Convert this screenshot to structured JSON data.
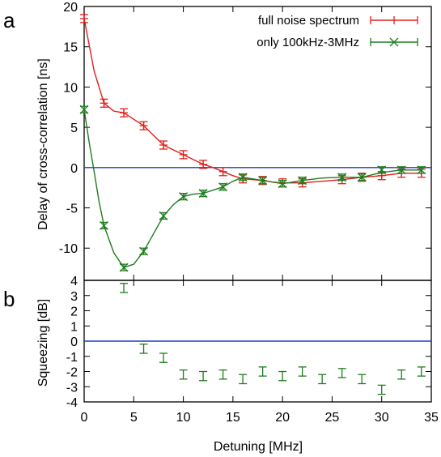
{
  "panels": {
    "top_letter": "a",
    "bottom_letter": "b"
  },
  "chart_data": [
    {
      "type": "line",
      "panel": "a",
      "xlabel": "",
      "ylabel": "Delay of cross-correlation [ns]",
      "xlim": [
        0,
        35
      ],
      "ylim": [
        -14,
        20
      ],
      "yticks": [
        20,
        15,
        10,
        5,
        0,
        -5,
        -10
      ],
      "reference_line": {
        "y": 0,
        "color": "#1f3fbf"
      },
      "legend": {
        "placement": "top-right"
      },
      "series": [
        {
          "name": "full noise spectrum",
          "color": "#e0201b",
          "marker": "plus",
          "x": [
            0,
            2,
            4,
            6,
            8,
            10,
            12,
            14,
            16,
            18,
            20,
            22,
            26,
            28,
            30,
            32,
            34
          ],
          "y": [
            18.5,
            8.0,
            6.8,
            5.2,
            2.8,
            1.6,
            0.4,
            -0.5,
            -1.4,
            -1.6,
            -1.9,
            -1.9,
            -1.5,
            -1.2,
            -1.0,
            -0.7,
            -0.7
          ],
          "err": [
            0.5,
            0.5,
            0.5,
            0.5,
            0.5,
            0.5,
            0.5,
            0.5,
            0.5,
            0.5,
            0.5,
            0.5,
            0.5,
            0.5,
            0.5,
            0.5,
            0.5
          ],
          "fit_x": [
            0,
            1,
            2,
            3,
            4,
            5,
            6,
            7,
            8,
            9,
            10,
            11,
            12,
            13,
            14,
            15,
            16,
            17,
            18,
            19,
            20,
            22,
            24,
            26,
            28,
            30,
            32,
            34
          ],
          "fit_y": [
            18.5,
            12.0,
            8.0,
            7.0,
            6.8,
            6.0,
            5.2,
            4.0,
            2.8,
            2.2,
            1.6,
            1.0,
            0.4,
            0.0,
            -0.5,
            -1.0,
            -1.4,
            -1.5,
            -1.6,
            -1.8,
            -1.9,
            -1.9,
            -1.7,
            -1.5,
            -1.2,
            -1.0,
            -0.7,
            -0.7
          ]
        },
        {
          "name": "only 100kHz-3MHz",
          "color": "#1e7d1e",
          "marker": "x",
          "x": [
            0,
            2,
            4,
            6,
            8,
            10,
            12,
            14,
            16,
            18,
            20,
            22,
            26,
            28,
            30,
            32,
            34
          ],
          "y": [
            7.2,
            -7.2,
            -12.4,
            -10.4,
            -6.0,
            -3.6,
            -3.2,
            -2.4,
            -1.2,
            -1.6,
            -2.0,
            -1.6,
            -1.2,
            -1.2,
            -0.3,
            -0.3,
            -0.3
          ],
          "err": [
            0.4,
            0.4,
            0.4,
            0.4,
            0.4,
            0.4,
            0.4,
            0.4,
            0.4,
            0.4,
            0.4,
            0.4,
            0.4,
            0.4,
            0.4,
            0.4,
            0.4
          ],
          "fit_x": [
            0,
            0.5,
            1,
            1.5,
            2,
            3,
            4,
            5,
            6,
            7,
            8,
            9,
            10,
            11,
            12,
            13,
            14,
            15,
            16,
            18,
            20,
            22,
            24,
            26,
            28,
            30,
            32,
            34
          ],
          "fit_y": [
            7.2,
            3.2,
            -0.5,
            -4.2,
            -7.2,
            -10.6,
            -12.4,
            -12.0,
            -10.4,
            -8.2,
            -6.0,
            -4.6,
            -3.6,
            -3.3,
            -3.2,
            -2.8,
            -2.4,
            -1.7,
            -1.2,
            -1.6,
            -2.0,
            -1.6,
            -1.3,
            -1.2,
            -1.2,
            -0.6,
            -0.3,
            -0.3
          ]
        }
      ]
    },
    {
      "type": "scatter",
      "panel": "b",
      "xlabel": "Detuning [MHz]",
      "ylabel": "Squeezing [dB]",
      "xlim": [
        0,
        35
      ],
      "ylim": [
        -4,
        4
      ],
      "xticks": [
        0,
        5,
        10,
        15,
        20,
        25,
        30,
        35
      ],
      "yticks": [
        4,
        3,
        2,
        1,
        0,
        -1,
        -2,
        -3,
        -4
      ],
      "reference_line": {
        "y": 0,
        "color": "#1f3fbf"
      },
      "series": [
        {
          "color": "#1e7d1e",
          "marker": "errorbar",
          "x": [
            4,
            6,
            8,
            10,
            12,
            14,
            16,
            18,
            20,
            22,
            24,
            26,
            28,
            30,
            32,
            34
          ],
          "y": [
            3.5,
            -0.5,
            -1.1,
            -2.2,
            -2.3,
            -2.2,
            -2.5,
            -2.0,
            -2.3,
            -2.0,
            -2.5,
            -2.1,
            -2.5,
            -3.2,
            -2.2,
            -2.0
          ],
          "err": [
            0.3,
            0.3,
            0.3,
            0.3,
            0.3,
            0.3,
            0.3,
            0.3,
            0.3,
            0.3,
            0.3,
            0.3,
            0.3,
            0.3,
            0.3,
            0.3
          ]
        }
      ]
    }
  ]
}
